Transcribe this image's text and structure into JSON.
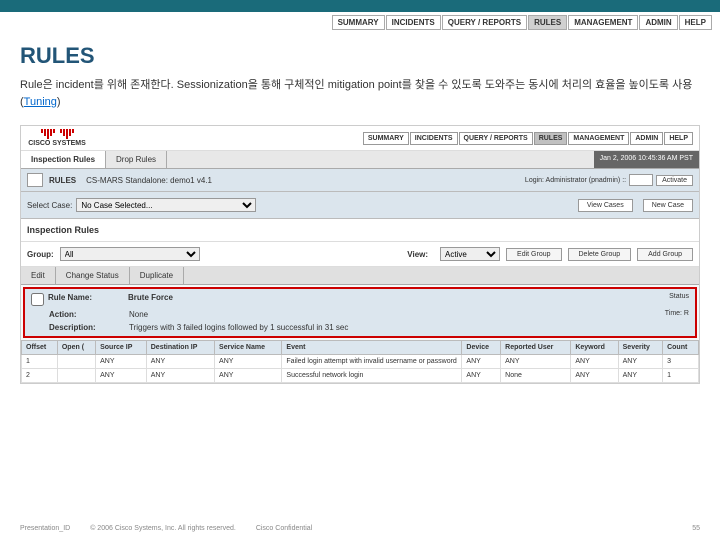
{
  "topbar_color": "#1a6b7a",
  "top_nav": {
    "items": [
      "SUMMARY",
      "INCIDENTS",
      "QUERY / REPORTS",
      "RULES",
      "MANAGEMENT",
      "ADMIN",
      "HELP"
    ],
    "active_index": 3
  },
  "page": {
    "title": "RULES",
    "desc_pre": "Rule은 incident를 위해 존재한다.  Sessionization을 통해 구체적인 mitigation point를 찾을 수 있도록 도와주는 동시에 처리의 효율을 높이도록 사용 (",
    "desc_tuning": "Tuning",
    "desc_post": ")"
  },
  "ss": {
    "logo_text": "CISCO SYSTEMS",
    "nav": {
      "items": [
        "SUMMARY",
        "INCIDENTS",
        "QUERY / REPORTS",
        "RULES",
        "MANAGEMENT",
        "ADMIN",
        "HELP"
      ],
      "active_index": 3
    },
    "tabs": {
      "items": [
        "Inspection Rules",
        "Drop Rules"
      ],
      "active_index": 0
    },
    "timestamp": "Jan 2, 2006 10:45:36 AM PST",
    "breadcrumb": {
      "path": "RULES",
      "sub": "CS-MARS Standalone: demo1 v4.1",
      "login": "Login: Administrator (pnadmin) ::",
      "activate": "Activate"
    },
    "case": {
      "label": "Select Case:",
      "value": "No Case Selected...",
      "btn_view": "View Cases",
      "btn_new": "New Case"
    },
    "section_title": "Inspection Rules",
    "group": {
      "label": "Group:",
      "value": "All",
      "view_label": "View:",
      "view_value": "Active",
      "btn_edit": "Edit Group",
      "btn_delete": "Delete Group",
      "btn_add": "Add Group"
    },
    "actions": [
      "Edit",
      "Change Status",
      "Duplicate"
    ],
    "detail": {
      "rule_name_lbl": "Rule Name:",
      "rule_name": "Brute Force",
      "action_lbl": "Action:",
      "action": "None",
      "desc_lbl": "Description:",
      "desc": "Triggers with 3 failed logins followed by 1 successful in 31 sec",
      "status_lbl": "Status",
      "time_lbl": "Time: R"
    },
    "table": {
      "headers": [
        "Offset",
        "Open (",
        "Source IP",
        "Destination IP",
        "Service Name",
        "Event",
        "Device",
        "Reported User",
        "Keyword",
        "Severity",
        "Count"
      ],
      "rows": [
        [
          "1",
          "",
          "ANY",
          "ANY",
          "ANY",
          "Failed login attempt with invalid username or password",
          "ANY",
          "ANY",
          "ANY",
          "ANY",
          "3"
        ],
        [
          "2",
          "",
          "ANY",
          "ANY",
          "ANY",
          "Successful network login",
          "ANY",
          "None",
          "ANY",
          "ANY",
          "1"
        ]
      ]
    }
  },
  "footer": {
    "pid": "Presentation_ID",
    "copy": "© 2006 Cisco Systems, Inc. All rights reserved.",
    "conf": "Cisco Confidential",
    "page": "55"
  }
}
